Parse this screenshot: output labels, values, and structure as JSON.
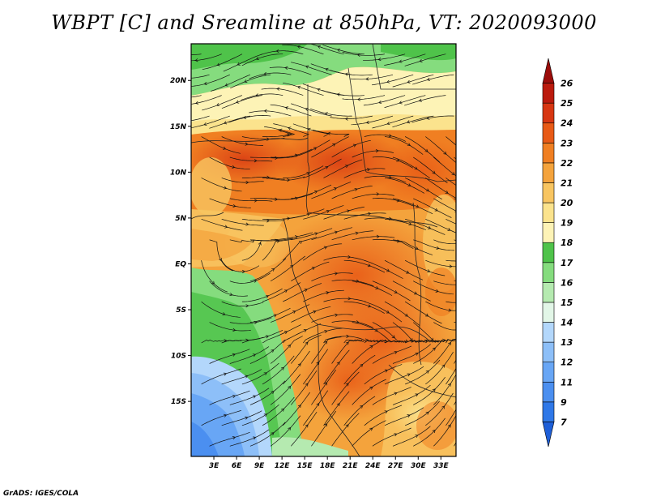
{
  "title": "WBPT [C] and Sreamline at 850hPa, VT: 2020093000",
  "credit": "GrADS: IGES/COLA",
  "map": {
    "lat_range": [
      -21,
      24
    ],
    "lon_range": [
      0,
      35
    ],
    "lat_ticks": [
      {
        "value": 20,
        "label": "20N"
      },
      {
        "value": 15,
        "label": "15N"
      },
      {
        "value": 10,
        "label": "10N"
      },
      {
        "value": 5,
        "label": "5N"
      },
      {
        "value": 0,
        "label": "EQ"
      },
      {
        "value": -5,
        "label": "5S"
      },
      {
        "value": -10,
        "label": "10S"
      },
      {
        "value": -15,
        "label": "15S"
      }
    ],
    "lon_ticks": [
      {
        "value": 3,
        "label": "3E"
      },
      {
        "value": 6,
        "label": "6E"
      },
      {
        "value": 9,
        "label": "9E"
      },
      {
        "value": 12,
        "label": "12E"
      },
      {
        "value": 15,
        "label": "15E"
      },
      {
        "value": 18,
        "label": "18E"
      },
      {
        "value": 21,
        "label": "21E"
      },
      {
        "value": 24,
        "label": "24E"
      },
      {
        "value": 27,
        "label": "27E"
      },
      {
        "value": 30,
        "label": "30E"
      },
      {
        "value": 33,
        "label": "33E"
      }
    ]
  },
  "colorbar": {
    "levels": [
      "7",
      "9",
      "11",
      "12",
      "13",
      "14",
      "15",
      "16",
      "17",
      "18",
      "19",
      "20",
      "21",
      "22",
      "23",
      "24",
      "25",
      "26"
    ],
    "colors": [
      "#1e5fd8",
      "#2f78e8",
      "#4b8ff0",
      "#68a6f5",
      "#8dbff8",
      "#b3d7fb",
      "#e2f6e7",
      "#b5eab0",
      "#85dc7e",
      "#4fc34a",
      "#fdf3b6",
      "#fbe38d",
      "#f8c561",
      "#f4a33c",
      "#f07f22",
      "#e85a16",
      "#d73612",
      "#bb1a0d",
      "#9b0c0a"
    ]
  }
}
